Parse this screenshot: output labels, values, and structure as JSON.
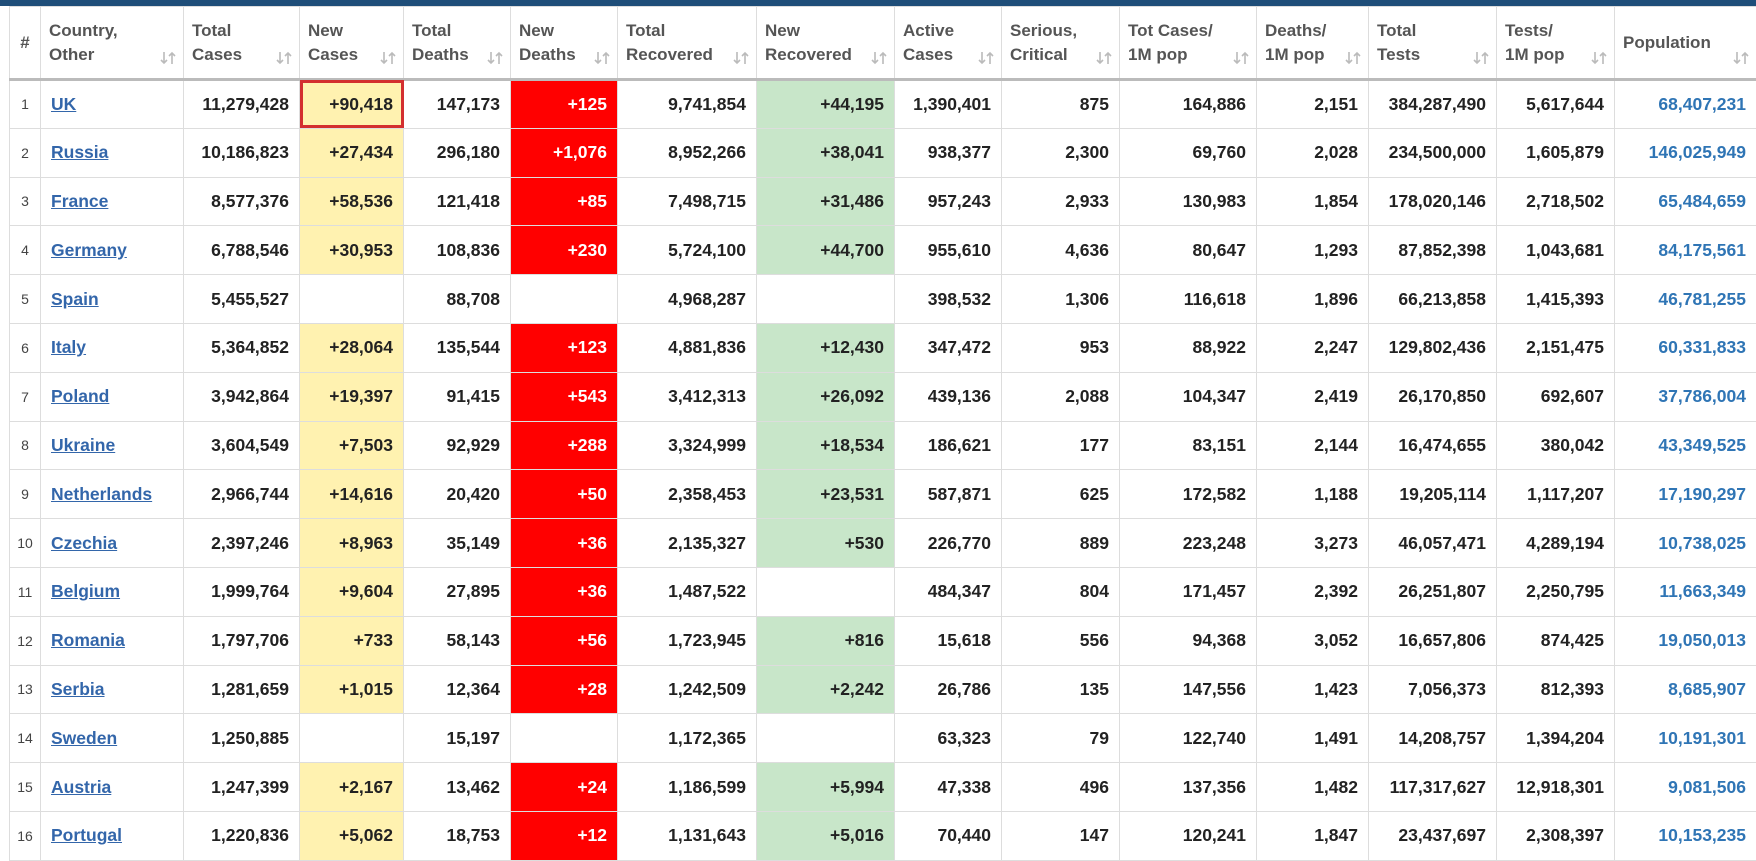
{
  "table": {
    "header": [
      [
        "#"
      ],
      [
        "Country,",
        "Other"
      ],
      [
        "Total",
        "Cases"
      ],
      [
        "New",
        "Cases"
      ],
      [
        "Total",
        "Deaths"
      ],
      [
        "New",
        "Deaths"
      ],
      [
        "Total",
        "Recovered"
      ],
      [
        "New",
        "Recovered"
      ],
      [
        "Active",
        "Cases"
      ],
      [
        "Serious,",
        "Critical"
      ],
      [
        "Tot Cases/",
        "1M pop"
      ],
      [
        "Deaths/",
        "1M pop"
      ],
      [
        "Total",
        "Tests"
      ],
      [
        "Tests/",
        "1M pop"
      ],
      [
        "Population"
      ]
    ],
    "rows": [
      [
        "1",
        "UK",
        "11,279,428",
        "+90,418",
        "147,173",
        "+125",
        "9,741,854",
        "+44,195",
        "1,390,401",
        "875",
        "164,886",
        "2,151",
        "384,287,490",
        "5,617,644",
        "68,407,231"
      ],
      [
        "2",
        "Russia",
        "10,186,823",
        "+27,434",
        "296,180",
        "+1,076",
        "8,952,266",
        "+38,041",
        "938,377",
        "2,300",
        "69,760",
        "2,028",
        "234,500,000",
        "1,605,879",
        "146,025,949"
      ],
      [
        "3",
        "France",
        "8,577,376",
        "+58,536",
        "121,418",
        "+85",
        "7,498,715",
        "+31,486",
        "957,243",
        "2,933",
        "130,983",
        "1,854",
        "178,020,146",
        "2,718,502",
        "65,484,659"
      ],
      [
        "4",
        "Germany",
        "6,788,546",
        "+30,953",
        "108,836",
        "+230",
        "5,724,100",
        "+44,700",
        "955,610",
        "4,636",
        "80,647",
        "1,293",
        "87,852,398",
        "1,043,681",
        "84,175,561"
      ],
      [
        "5",
        "Spain",
        "5,455,527",
        null,
        "88,708",
        null,
        "4,968,287",
        null,
        "398,532",
        "1,306",
        "116,618",
        "1,896",
        "66,213,858",
        "1,415,393",
        "46,781,255"
      ],
      [
        "6",
        "Italy",
        "5,364,852",
        "+28,064",
        "135,544",
        "+123",
        "4,881,836",
        "+12,430",
        "347,472",
        "953",
        "88,922",
        "2,247",
        "129,802,436",
        "2,151,475",
        "60,331,833"
      ],
      [
        "7",
        "Poland",
        "3,942,864",
        "+19,397",
        "91,415",
        "+543",
        "3,412,313",
        "+26,092",
        "439,136",
        "2,088",
        "104,347",
        "2,419",
        "26,170,850",
        "692,607",
        "37,786,004"
      ],
      [
        "8",
        "Ukraine",
        "3,604,549",
        "+7,503",
        "92,929",
        "+288",
        "3,324,999",
        "+18,534",
        "186,621",
        "177",
        "83,151",
        "2,144",
        "16,474,655",
        "380,042",
        "43,349,525"
      ],
      [
        "9",
        "Netherlands",
        "2,966,744",
        "+14,616",
        "20,420",
        "+50",
        "2,358,453",
        "+23,531",
        "587,871",
        "625",
        "172,582",
        "1,188",
        "19,205,114",
        "1,117,207",
        "17,190,297"
      ],
      [
        "10",
        "Czechia",
        "2,397,246",
        "+8,963",
        "35,149",
        "+36",
        "2,135,327",
        "+530",
        "226,770",
        "889",
        "223,248",
        "3,273",
        "46,057,471",
        "4,289,194",
        "10,738,025"
      ],
      [
        "11",
        "Belgium",
        "1,999,764",
        "+9,604",
        "27,895",
        "+36",
        "1,487,522",
        null,
        "484,347",
        "804",
        "171,457",
        "2,392",
        "26,251,807",
        "2,250,795",
        "11,663,349"
      ],
      [
        "12",
        "Romania",
        "1,797,706",
        "+733",
        "58,143",
        "+56",
        "1,723,945",
        "+816",
        "15,618",
        "556",
        "94,368",
        "3,052",
        "16,657,806",
        "874,425",
        "19,050,013"
      ],
      [
        "13",
        "Serbia",
        "1,281,659",
        "+1,015",
        "12,364",
        "+28",
        "1,242,509",
        "+2,242",
        "26,786",
        "135",
        "147,556",
        "1,423",
        "7,056,373",
        "812,393",
        "8,685,907"
      ],
      [
        "14",
        "Sweden",
        "1,250,885",
        null,
        "15,197",
        null,
        "1,172,365",
        null,
        "63,323",
        "79",
        "122,740",
        "1,491",
        "14,208,757",
        "1,394,204",
        "10,191,301"
      ],
      [
        "15",
        "Austria",
        "1,247,399",
        "+2,167",
        "13,462",
        "+24",
        "1,186,599",
        "+5,994",
        "47,338",
        "496",
        "137,356",
        "1,482",
        "117,317,627",
        "12,918,301",
        "9,081,506"
      ],
      [
        "16",
        "Portugal",
        "1,220,836",
        "+5,062",
        "18,753",
        "+12",
        "1,131,643",
        "+5,016",
        "70,440",
        "147",
        "120,241",
        "1,847",
        "23,437,697",
        "2,308,397",
        "10,153,235"
      ]
    ]
  }
}
